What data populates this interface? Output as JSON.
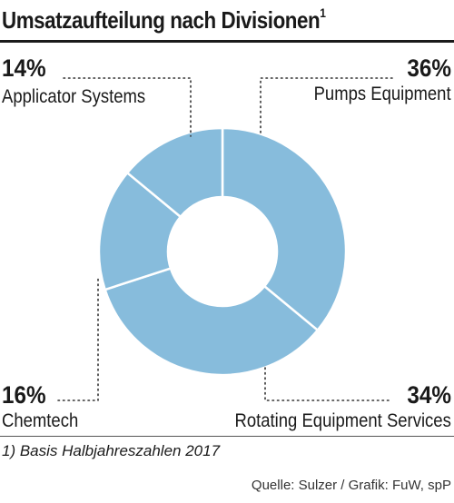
{
  "title": "Umsatzaufteilung nach Divisionen",
  "title_note": "1",
  "footnote": "1) Basis Halbjahreszahlen 2017",
  "source": "Quelle: Sulzer / Grafik: FuW, spP",
  "colors": {
    "slice": "#87bcdc",
    "separator": "#ffffff",
    "leader": "#333333",
    "rule": "#1a1a1a"
  },
  "chart_data": {
    "type": "pie",
    "donut": true,
    "title": "Umsatzaufteilung nach Divisionen",
    "slices": [
      {
        "label": "Pumps Equipment",
        "value": 36,
        "display": "36%"
      },
      {
        "label": "Rotating Equipment Services",
        "value": 34,
        "display": "34%"
      },
      {
        "label": "Chemtech",
        "value": 16,
        "display": "16%"
      },
      {
        "label": "Applicator Systems",
        "value": 14,
        "display": "14%"
      }
    ],
    "start": "top",
    "direction": "clockwise"
  }
}
